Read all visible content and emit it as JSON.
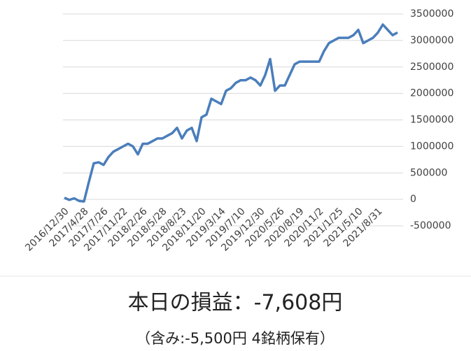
{
  "chart_data": {
    "type": "line",
    "categories": [
      "2016/12/30",
      null,
      null,
      null,
      "2017/4/28",
      null,
      null,
      null,
      "2017/7/26",
      null,
      null,
      null,
      "2017/11/22",
      null,
      null,
      null,
      "2018/2/26",
      null,
      null,
      null,
      "2018/5/28",
      null,
      null,
      null,
      "2018/8/23",
      null,
      null,
      null,
      "2018/11/20",
      null,
      null,
      null,
      "2019/3/14",
      null,
      null,
      null,
      "2019/7/10",
      null,
      null,
      null,
      "2019/12/30",
      null,
      null,
      null,
      "2020/5/26",
      null,
      null,
      null,
      "2020/8/19",
      null,
      null,
      null,
      "2020/11/2",
      null,
      null,
      null,
      "2021/1/25",
      null,
      null,
      null,
      "2021/5/10",
      null,
      null,
      null,
      "2021/8/31",
      null,
      null,
      null,
      null
    ],
    "series": [
      {
        "color": "#4a7ebb",
        "values": [
          30000,
          -10000,
          20000,
          -30000,
          -40000,
          330000,
          680000,
          700000,
          650000,
          800000,
          900000,
          950000,
          1000000,
          1050000,
          1000000,
          850000,
          1050000,
          1050000,
          1100000,
          1150000,
          1150000,
          1200000,
          1250000,
          1350000,
          1150000,
          1300000,
          1350000,
          1100000,
          1550000,
          1600000,
          1900000,
          1850000,
          1800000,
          2050000,
          2100000,
          2200000,
          2250000,
          2250000,
          2300000,
          2250000,
          2150000,
          2350000,
          2650000,
          2050000,
          2150000,
          2150000,
          2350000,
          2550000,
          2600000,
          2600000,
          2600000,
          2600000,
          2600000,
          2800000,
          2950000,
          3000000,
          3050000,
          3050000,
          3050000,
          3100000,
          3200000,
          2950000,
          3000000,
          3050000,
          3150000,
          3300000,
          3200000,
          3100000,
          3150000
        ]
      }
    ],
    "ylim": [
      -500000,
      3500000
    ],
    "yticks": [
      -500000,
      0,
      500000,
      1000000,
      1500000,
      2000000,
      2500000,
      3000000,
      3500000
    ],
    "grid": true,
    "annotations": [
      "本日の損益：-7,608円",
      "（含み:-5,500円  4銘柄保有）"
    ]
  }
}
